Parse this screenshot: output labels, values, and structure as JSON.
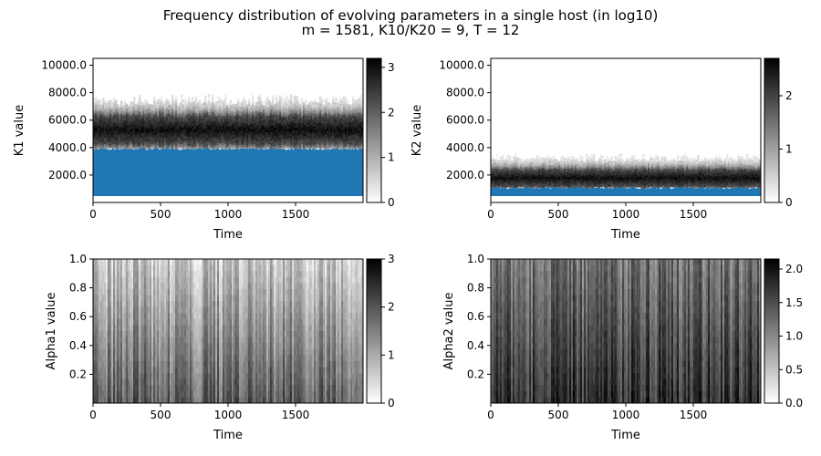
{
  "figure": {
    "title_line1": "Frequency distribution of evolving parameters in a single host (in log10)",
    "title_line2": "m = 1581, K10/K20 = 9, T = 12"
  },
  "chart_data": [
    {
      "type": "heatmap",
      "xlabel": "Time",
      "ylabel": "K1 value",
      "xlim": [
        0,
        2000
      ],
      "ylim": [
        0,
        10500
      ],
      "xticks": [
        0,
        500,
        1000,
        1500
      ],
      "yticks": [
        "2000.0",
        "4000.0",
        "6000.0",
        "8000.0",
        "10000.0"
      ],
      "ytick_values": [
        2000,
        4000,
        6000,
        8000,
        10000
      ],
      "colorbar": {
        "range": [
          0,
          3.2
        ],
        "ticks": [
          0,
          1,
          2,
          3
        ]
      },
      "filled_region": {
        "color": "#1f77b4",
        "upper_value": 3900
      },
      "band": {
        "center": 5300,
        "core_half_width": 1000,
        "max_extent": 7800
      }
    },
    {
      "type": "heatmap",
      "xlabel": "Time",
      "ylabel": "K2 value",
      "xlim": [
        0,
        2000
      ],
      "ylim": [
        0,
        10500
      ],
      "xticks": [
        0,
        500,
        1000,
        1500
      ],
      "yticks": [
        "2000.0",
        "4000.0",
        "6000.0",
        "8000.0",
        "10000.0"
      ],
      "ytick_values": [
        2000,
        4000,
        6000,
        8000,
        10000
      ],
      "colorbar": {
        "range": [
          0,
          2.7
        ],
        "ticks": [
          0,
          1,
          2
        ]
      },
      "filled_region": {
        "color": "#1f77b4",
        "upper_value": 1050
      },
      "band": {
        "center": 1800,
        "core_half_width": 600,
        "max_extent": 3500
      }
    },
    {
      "type": "heatmap",
      "xlabel": "Time",
      "ylabel": "Alpha1 value",
      "xlim": [
        0,
        2000
      ],
      "ylim": [
        0.0,
        1.0
      ],
      "xticks": [
        0,
        500,
        1000,
        1500
      ],
      "yticks": [
        "0.2",
        "0.4",
        "0.6",
        "0.8",
        "1.0"
      ],
      "ytick_values": [
        0.2,
        0.4,
        0.6,
        0.8,
        1.0
      ],
      "colorbar": {
        "range": [
          0,
          3.0
        ],
        "ticks": [
          0,
          1,
          2,
          3
        ]
      },
      "gradient": {
        "top_intensity": 0.22,
        "bottom_intensity": 0.62
      }
    },
    {
      "type": "heatmap",
      "xlabel": "Time",
      "ylabel": "Alpha2 value",
      "xlim": [
        0,
        2000
      ],
      "ylim": [
        0.0,
        1.0
      ],
      "xticks": [
        0,
        500,
        1000,
        1500
      ],
      "yticks": [
        "0.2",
        "0.4",
        "0.6",
        "0.8",
        "1.0"
      ],
      "ytick_values": [
        0.2,
        0.4,
        0.6,
        0.8,
        1.0
      ],
      "colorbar": {
        "range": [
          0,
          2.15
        ],
        "ticks": [
          "0.0",
          "0.5",
          "1.0",
          "1.5",
          "2.0"
        ],
        "tick_values": [
          0,
          0.5,
          1.0,
          1.5,
          2.0
        ]
      },
      "gradient": {
        "top_intensity": 0.55,
        "bottom_intensity": 0.8
      }
    }
  ]
}
